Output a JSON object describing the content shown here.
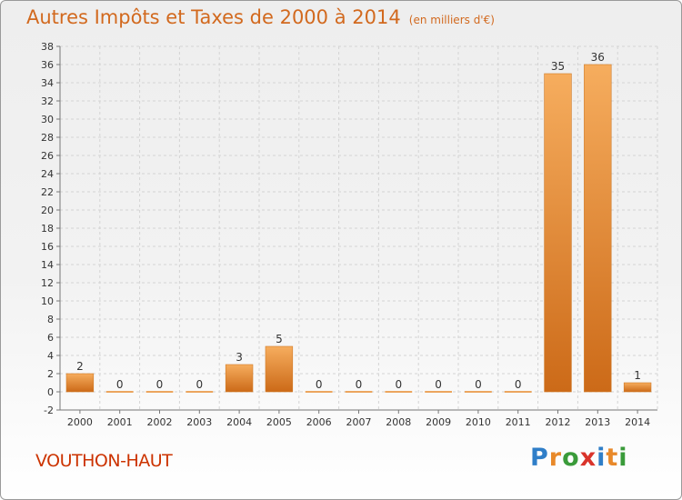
{
  "title": "Autres Impôts et Taxes de 2000 à 2014",
  "subtitle": "(en milliers d'€)",
  "commune": "VOUTHON-HAUT",
  "brand": {
    "letters": [
      "P",
      "r",
      "o",
      "x",
      "i",
      "t",
      "i"
    ],
    "colors": [
      "#2f7ec8",
      "#e8892a",
      "#3a9b3a",
      "#d9342b",
      "#2f7ec8",
      "#e8892a",
      "#3a9b3a"
    ]
  },
  "colors": {
    "bar": "#e8892a",
    "bar_light": "#f6ad5e",
    "bar_dark": "#cc6a18",
    "text": "#d2691e"
  },
  "chart_data": {
    "type": "bar",
    "categories": [
      "2000",
      "2001",
      "2002",
      "2003",
      "2004",
      "2005",
      "2006",
      "2007",
      "2008",
      "2009",
      "2010",
      "2011",
      "2012",
      "2013",
      "2014"
    ],
    "values": [
      2,
      0,
      0,
      0,
      3,
      5,
      0,
      0,
      0,
      0,
      0,
      0,
      35,
      36,
      1
    ],
    "data_labels": [
      "2",
      "0",
      "0",
      "0",
      "3",
      "5",
      "0",
      "0",
      "0",
      "0",
      "0",
      "0",
      "35",
      "36",
      "1"
    ],
    "ylim": [
      -2,
      38
    ],
    "yticks": [
      -2,
      0,
      2,
      4,
      6,
      8,
      10,
      12,
      14,
      16,
      18,
      20,
      22,
      24,
      26,
      28,
      30,
      32,
      34,
      36,
      38
    ],
    "grid": true,
    "xlabel": "",
    "ylabel": ""
  }
}
